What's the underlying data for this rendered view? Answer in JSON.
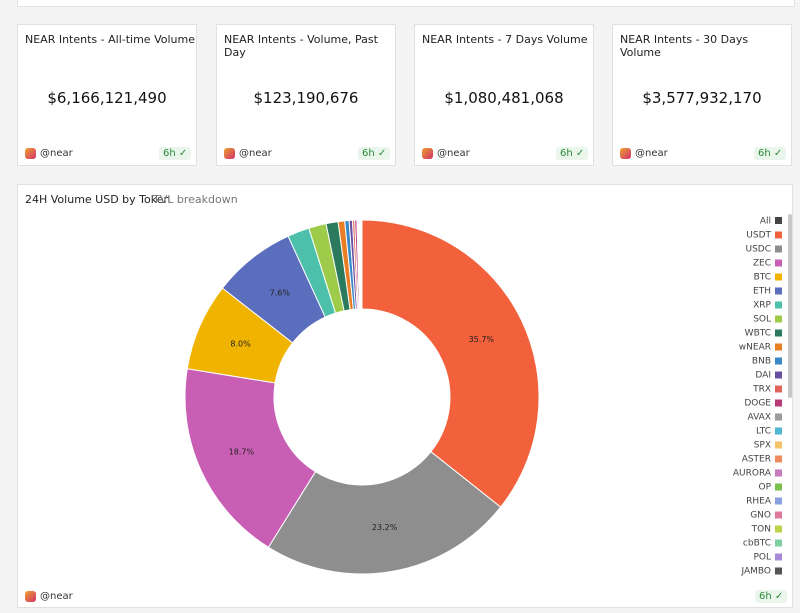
{
  "cards": [
    {
      "title": "NEAR Intents - All-time Volume",
      "value": "$6,166,121,490",
      "author": "@near",
      "age": "6h"
    },
    {
      "title": "NEAR Intents - Volume, Past Day",
      "value": "$123,190,676",
      "author": "@near",
      "age": "6h"
    },
    {
      "title": "NEAR Intents - 7 Days Volume",
      "value": "$1,080,481,068",
      "author": "@near",
      "age": "6h"
    },
    {
      "title": "NEAR Intents - 30 Days Volume",
      "value": "$3,577,932,170",
      "author": "@near",
      "age": "6h"
    }
  ],
  "panel": {
    "author": "@near",
    "age": "6h",
    "legend_all": "All"
  },
  "chart_data": {
    "type": "donut",
    "title": "24H Volume USD by Token",
    "subtitle": "TVL breakdown",
    "categories": [
      "USDT",
      "USDC",
      "ZEC",
      "BTC",
      "ETH",
      "XRP",
      "SOL",
      "WBTC",
      "wNEAR",
      "BNB",
      "DAI",
      "TRX",
      "DOGE",
      "AVAX",
      "LTC",
      "SPX",
      "ASTER",
      "AURORA",
      "OP",
      "RHEA",
      "GNO",
      "TON",
      "cbBTC",
      "POL",
      "JAMBO"
    ],
    "values": [
      35.7,
      23.2,
      18.7,
      8.0,
      7.6,
      2.0,
      1.6,
      1.1,
      0.6,
      0.4,
      0.3,
      0.2,
      0.2,
      0.1,
      0.05,
      0.05,
      0.05,
      0.05,
      0.03,
      0.03,
      0.02,
      0.02,
      0.02,
      0.02,
      0.02
    ],
    "value_labels": [
      "35.7%",
      "23.2%",
      "18.7%",
      "8.0%",
      "7.6%",
      null,
      null,
      null,
      null,
      null,
      null,
      null,
      null,
      null,
      null,
      null,
      null,
      null,
      null,
      null,
      null,
      null,
      null,
      null,
      null
    ],
    "colors": [
      "#f2603c",
      "#8e8e8e",
      "#c95fb4",
      "#f0b400",
      "#5b6dbd",
      "#4cc0ab",
      "#9ecb4a",
      "#2c7a5d",
      "#e87d24",
      "#3a88c8",
      "#6a4fa0",
      "#e0645a",
      "#b83a78",
      "#9a9a9a",
      "#4fb6d0",
      "#f5c36a",
      "#f08a5d",
      "#c77ac0",
      "#7ac04c",
      "#8aa0e0",
      "#e07a9a",
      "#b9d44a",
      "#7fd0a0",
      "#a78ad8",
      "#555555"
    ]
  }
}
